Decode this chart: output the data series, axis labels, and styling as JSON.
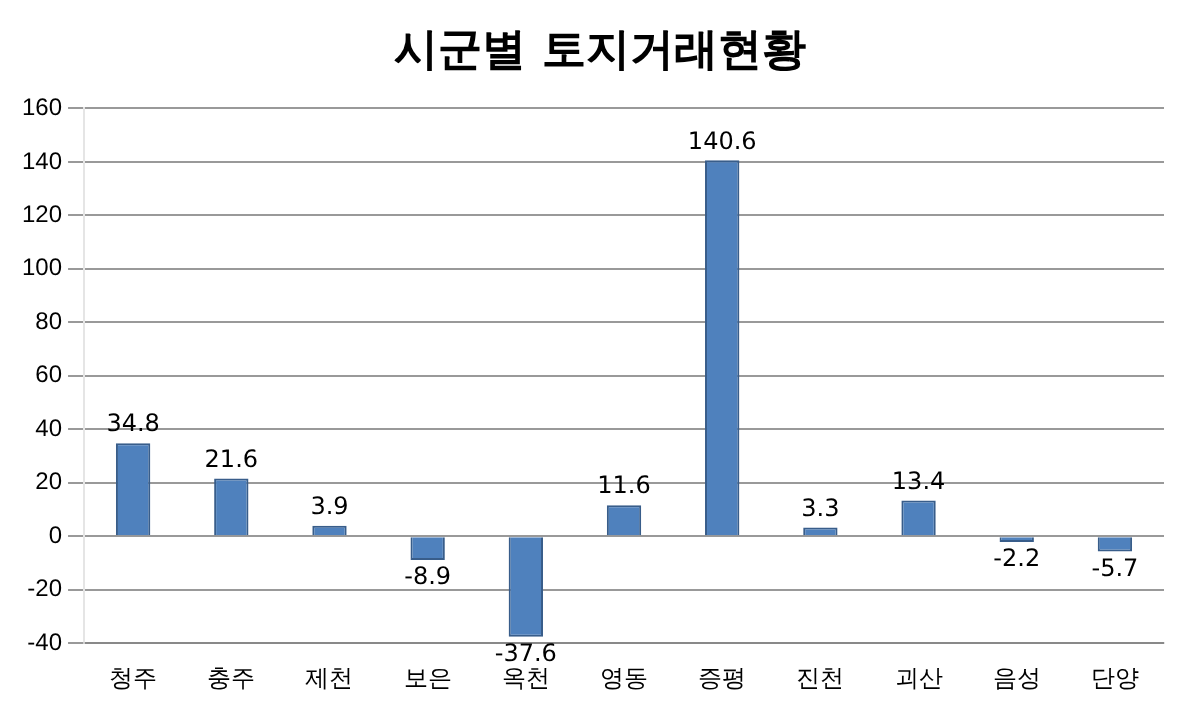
{
  "chart_data": {
    "type": "bar",
    "title": "시군별 토지거래현황",
    "categories": [
      "청주",
      "충주",
      "제천",
      "보은",
      "옥천",
      "영동",
      "증평",
      "진천",
      "괴산",
      "음성",
      "단양"
    ],
    "values": [
      34.8,
      21.6,
      3.9,
      -8.9,
      -37.6,
      11.6,
      140.6,
      3.3,
      13.4,
      -2.2,
      -5.7
    ],
    "color": "#4f81bd",
    "ylim": [
      -40,
      160
    ],
    "yticks": [
      -40,
      -20,
      0,
      20,
      40,
      60,
      80,
      100,
      120,
      140,
      160
    ],
    "grid": "y",
    "data_labels": true
  }
}
